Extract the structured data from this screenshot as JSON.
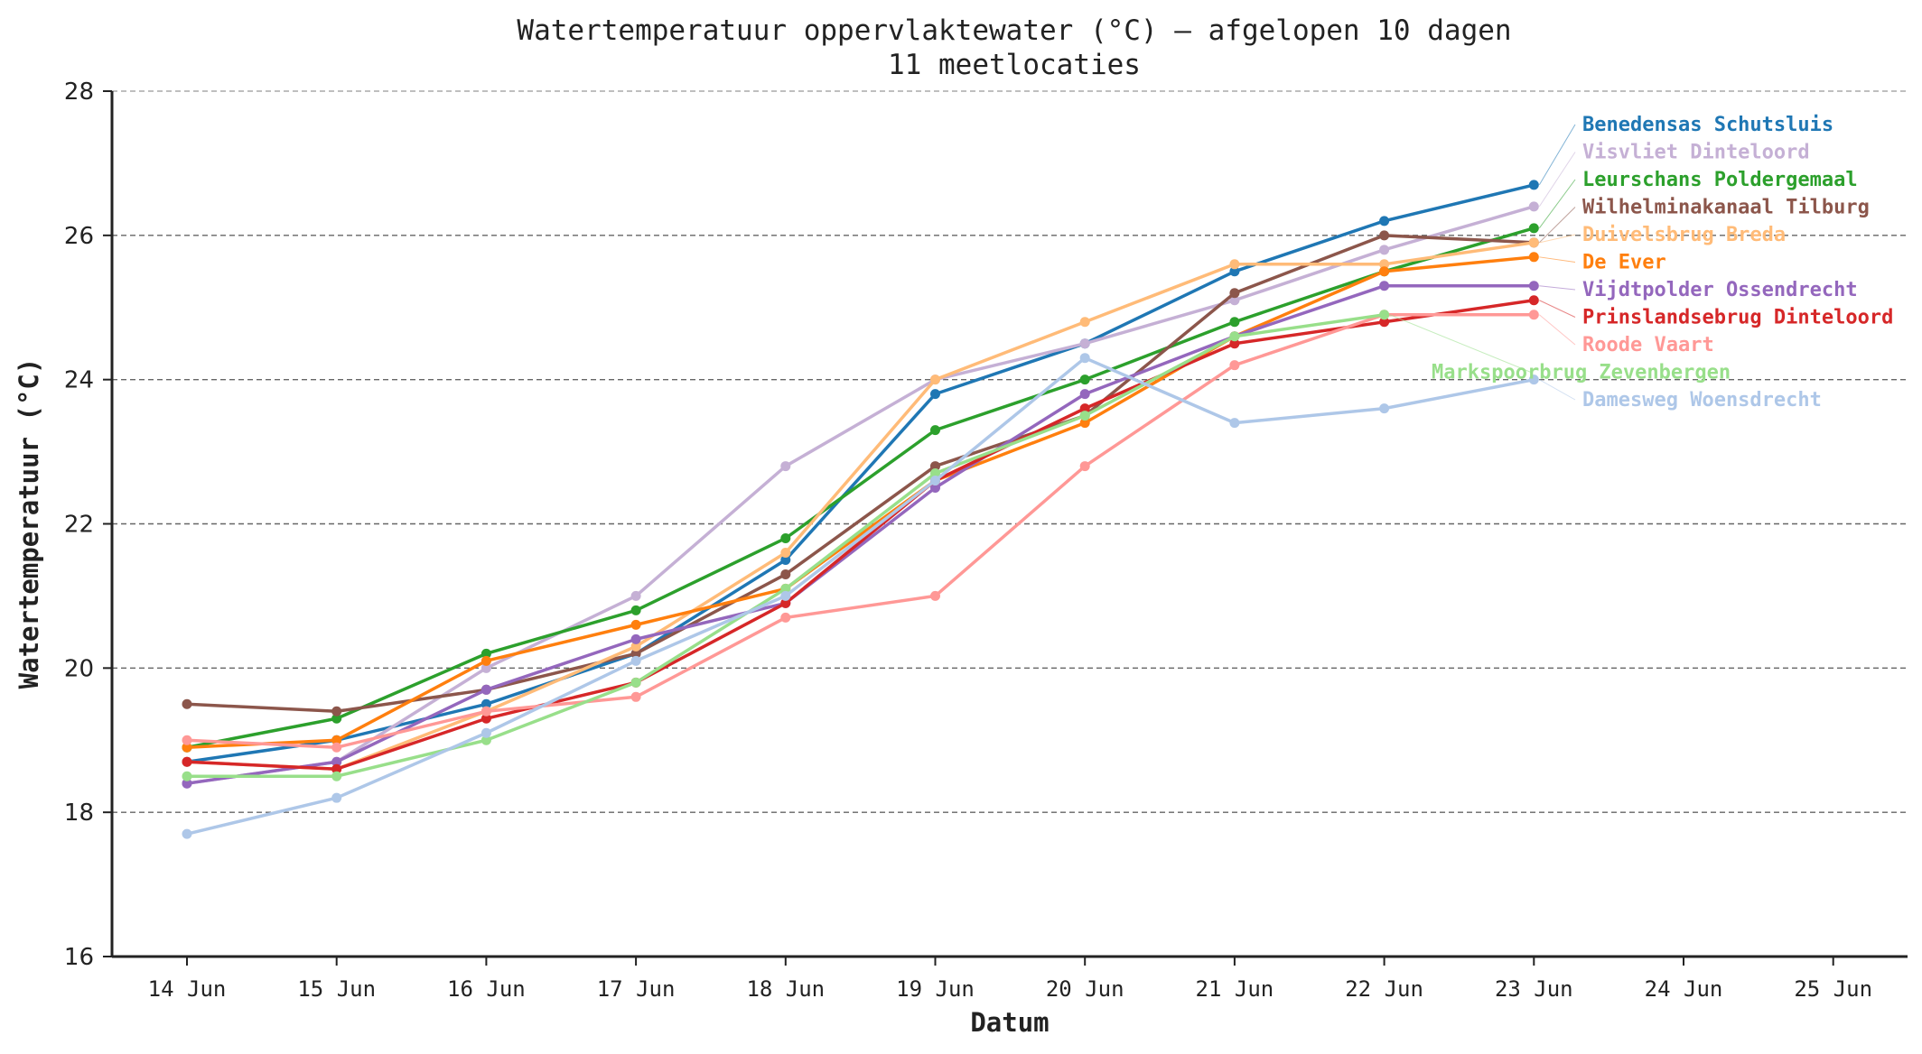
{
  "chart_data": {
    "type": "line",
    "title": "Watertemperatuur oppervlaktewater (°C)  —  afgelopen 10 dagen",
    "subtitle": "11 meetlocaties",
    "xlabel": "Datum",
    "ylabel": "Watertemperatuur (°C)",
    "ylim": [
      16,
      28
    ],
    "yticks": [
      "16",
      "18",
      "20",
      "22",
      "24",
      "26",
      "28"
    ],
    "xtick_labels": [
      "14 Jun",
      "15 Jun",
      "16 Jun",
      "17 Jun",
      "18 Jun",
      "19 Jun",
      "20 Jun",
      "21 Jun",
      "22 Jun",
      "23 Jun",
      "24 Jun",
      "25 Jun"
    ],
    "grid": "horizontal dashed",
    "legend": "direct labels at right end of lines",
    "series": [
      {
        "name": "Benedensas Schutsluis",
        "color": "#1f77b4",
        "values": [
          18.7,
          19.0,
          19.5,
          20.2,
          21.5,
          23.8,
          24.5,
          25.5,
          26.2,
          26.7
        ]
      },
      {
        "name": "Visvliet Dinteloord",
        "color": "#c5b0d5",
        "values": [
          18.4,
          18.7,
          20.0,
          21.0,
          22.8,
          24.0,
          24.5,
          25.1,
          25.8,
          26.4
        ]
      },
      {
        "name": "Leurschans Poldergemaal",
        "color": "#2ca02c",
        "values": [
          18.9,
          19.3,
          20.2,
          20.8,
          21.8,
          23.3,
          24.0,
          24.8,
          25.5,
          26.1
        ]
      },
      {
        "name": "Wilhelminakanaal Tilburg",
        "color": "#8c564b",
        "values": [
          19.5,
          19.4,
          19.7,
          20.2,
          21.3,
          22.8,
          23.5,
          25.2,
          26.0,
          25.9
        ]
      },
      {
        "name": "Duivelsbrug Breda",
        "color": "#ffbb78",
        "values": [
          18.7,
          18.6,
          19.4,
          20.3,
          21.6,
          24.0,
          24.8,
          25.6,
          25.6,
          25.9
        ]
      },
      {
        "name": "De Ever",
        "color": "#ff7f0e",
        "values": [
          18.9,
          19.0,
          20.1,
          20.6,
          21.1,
          22.6,
          23.4,
          24.6,
          25.5,
          25.7
        ]
      },
      {
        "name": "Vijdtpolder Ossendrecht",
        "color": "#9467bd",
        "values": [
          18.4,
          18.7,
          19.7,
          20.4,
          20.9,
          22.5,
          23.8,
          24.6,
          25.3,
          25.3
        ]
      },
      {
        "name": "Prinslandsebrug Dinteloord",
        "color": "#d62728",
        "values": [
          18.7,
          18.6,
          19.3,
          19.8,
          20.9,
          22.6,
          23.6,
          24.5,
          24.8,
          25.1
        ]
      },
      {
        "name": "Roode Vaart",
        "color": "#ff9896",
        "values": [
          19.0,
          18.9,
          19.4,
          19.6,
          20.7,
          21.0,
          22.8,
          24.2,
          24.9,
          24.9
        ]
      },
      {
        "name": "Markspoorbrug Zevenbergen",
        "color": "#98df8a",
        "values": [
          18.5,
          18.5,
          19.0,
          19.8,
          21.1,
          22.7,
          23.5,
          24.6,
          24.9,
          null
        ]
      },
      {
        "name": "Damesweg Woensdrecht",
        "color": "#aec7e8",
        "values": [
          17.7,
          18.2,
          19.1,
          20.1,
          21.0,
          22.6,
          24.3,
          23.4,
          23.6,
          24.0
        ]
      }
    ]
  }
}
